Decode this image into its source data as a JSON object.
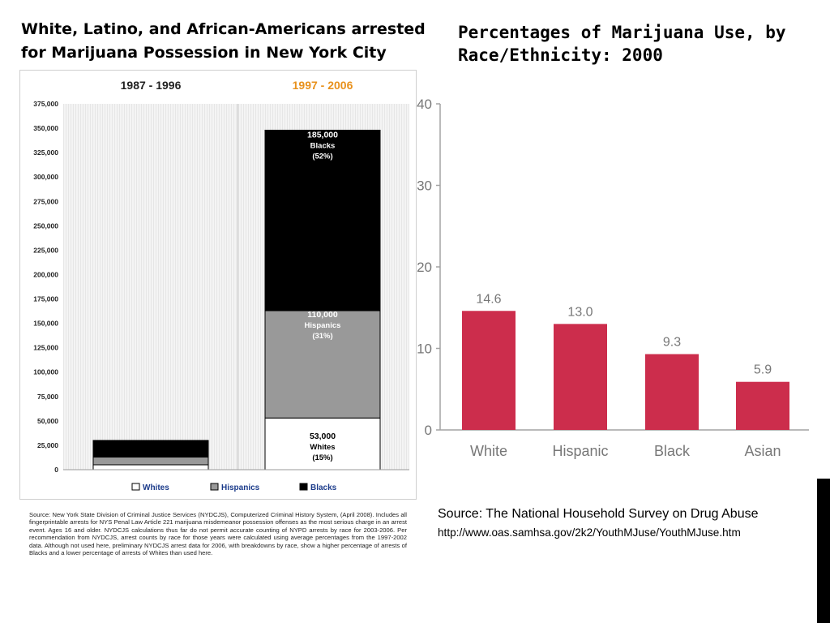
{
  "colors": {
    "whites": "#ffffff",
    "hispanics": "#999999",
    "blacks": "#000000",
    "period2": "#e8911c",
    "bars_right": "#cc2d4c",
    "axis_right": "#a3a3a3"
  },
  "left": {
    "title": "White, Latino, and African-Americans arrested for Marijuana Possession in New York City",
    "source": "Source: New York State Division of Criminal Justice Services (NYDCJS), Computerized Criminal History System, (April 2008). Includes all fingerprintable arrests for NYS Penal Law Article 221 marijuana misdemeanor possession offenses as the most serious charge in an arrest event. Ages 16 and older. NYDCJS calculations thus far do not permit accurate counting of NYPD arrests by race for 2003-2006. Per recommendation from NYDCJS, arrest counts by race for those years were calculated using average percentages from the 1997-2002 data. Although not used here, preliminary NYDCJS arrest data for 2006, with breakdowns by race, show a higher percentage of arrests of Blacks and a lower percentage of arrests of Whites than used here."
  },
  "right": {
    "title": "Percentages of Marijuana Use, by Race/Ethnicity: 2000",
    "source_line": "Source: The National Household Survey on Drug Abuse",
    "source_url": "http://www.oas.samhsa.gov/2k2/YouthMJuse/YouthMJuse.htm"
  },
  "chart_data": [
    {
      "type": "bar",
      "stacked": true,
      "categories": [
        "1987 - 1996",
        "1997 - 2006"
      ],
      "series": [
        {
          "name": "Whites",
          "values": [
            5000,
            53000
          ],
          "labels": [
            "",
            "53,000\nWhites\n(15%)"
          ]
        },
        {
          "name": "Hispanics",
          "values": [
            8000,
            110000
          ],
          "labels": [
            "",
            "110,000\nHispanics\n(31%)"
          ]
        },
        {
          "name": "Blacks",
          "values": [
            17000,
            185000
          ],
          "labels": [
            "",
            "185,000\nBlacks\n(52%)"
          ]
        }
      ],
      "ylim": [
        0,
        375000
      ],
      "yticks": [
        "0",
        "25,000",
        "50,000",
        "75,000",
        "100,000",
        "125,000",
        "150,000",
        "175,000",
        "200,000",
        "225,000",
        "250,000",
        "275,000",
        "300,000",
        "325,000",
        "350,000",
        "375,000"
      ],
      "legend": "bottom",
      "grid": false
    },
    {
      "type": "bar",
      "categories": [
        "White",
        "Hispanic",
        "Black",
        "Asian"
      ],
      "values": [
        14.6,
        13.0,
        9.3,
        5.9
      ],
      "value_labels": [
        "14.6",
        "13.0",
        "9.3",
        "5.9"
      ],
      "ylim": [
        0,
        40
      ],
      "yticks": [
        "0",
        "10",
        "20",
        "30",
        "40"
      ],
      "grid": false
    }
  ]
}
